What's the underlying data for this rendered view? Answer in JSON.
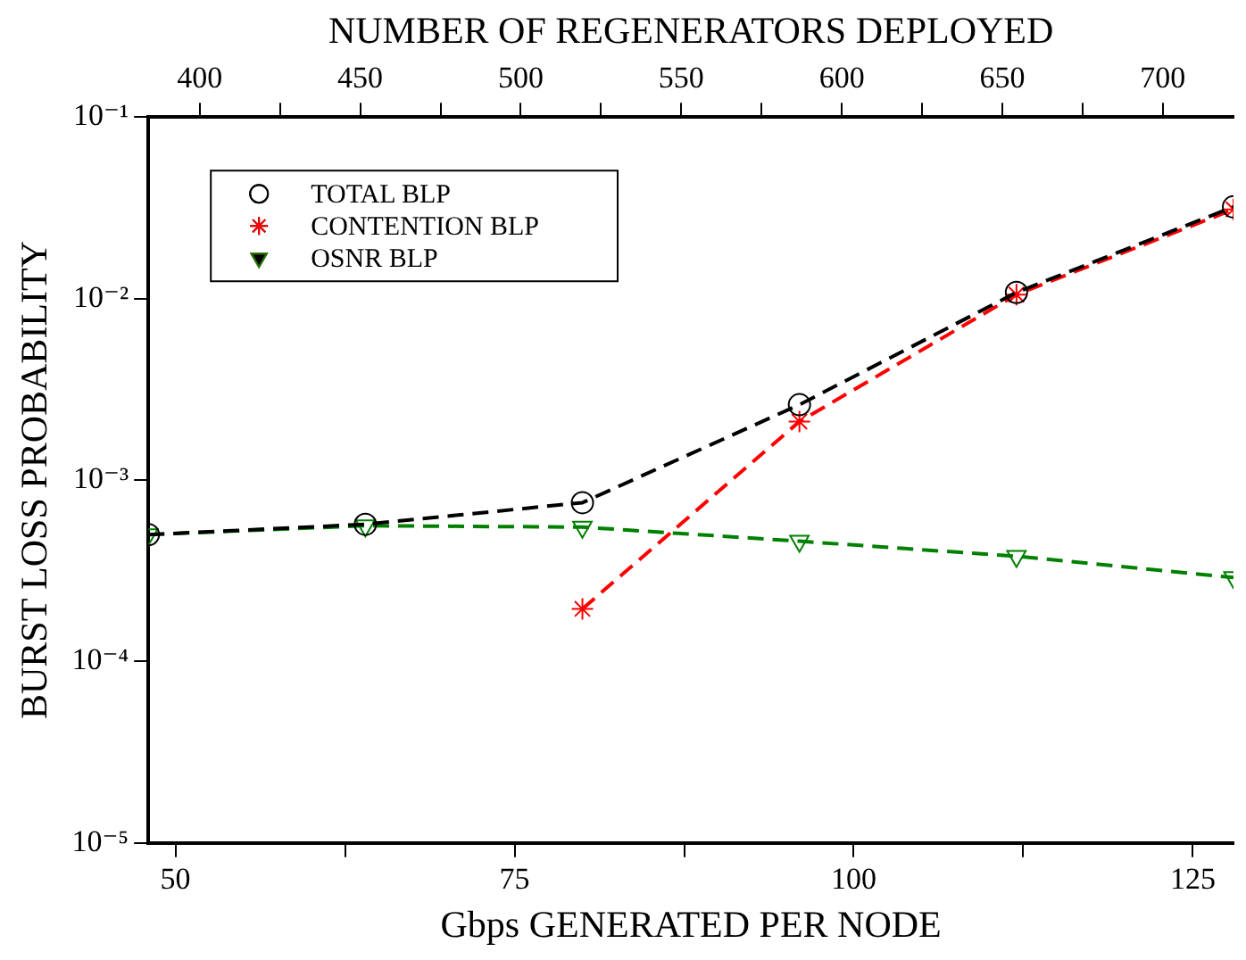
{
  "chart_data": {
    "type": "line",
    "xlabel": "Gbps GENERATED PER NODE",
    "ylabel": "BURST LOSS PROBABILITY",
    "x2label": "NUMBER OF REGENERATORS DEPLOYED",
    "x": [
      48,
      64,
      80,
      96,
      112,
      128
    ],
    "series": [
      {
        "name": "TOTAL BLP",
        "color": "#000000",
        "marker": "circle",
        "values": [
          0.0005,
          0.00057,
          0.00075,
          0.0026,
          0.0108,
          0.032
        ]
      },
      {
        "name": "CONTENTION BLP",
        "color": "#ff0000",
        "marker": "cross",
        "values": [
          null,
          null,
          0.000195,
          0.0021,
          0.0105,
          0.031
        ]
      },
      {
        "name": "OSNR BLP",
        "color": "#008000",
        "marker": "triangle",
        "values": [
          0.0005,
          0.00056,
          0.00055,
          0.00046,
          0.00038,
          0.00029
        ]
      }
    ],
    "line_style": "dashed",
    "log": "y",
    "xlim": [
      48,
      128
    ],
    "xticks": [
      50,
      {
        "value": 62.5,
        "label": null
      },
      75,
      {
        "value": 87.5,
        "label": null
      },
      100,
      {
        "value": 112.5,
        "label": null
      },
      125
    ],
    "x2lim": [
      384,
      722
    ],
    "x2ticks": [
      400,
      {
        "value": 425,
        "label": null
      },
      450,
      {
        "value": 475,
        "label": null
      },
      500,
      {
        "value": 525,
        "label": null
      },
      550,
      {
        "value": 575,
        "label": null
      },
      600,
      {
        "value": 625,
        "label": null
      },
      650,
      {
        "value": 675,
        "label": null
      },
      700
    ],
    "ylim": [
      1e-05,
      0.1
    ],
    "yticks": [
      {
        "value": 1e-05,
        "label": "10⁻⁵"
      },
      {
        "value": 0.0001,
        "label": "10⁻⁴"
      },
      {
        "value": 0.001,
        "label": "10⁻³"
      },
      {
        "value": 0.01,
        "label": "10⁻²"
      },
      {
        "value": 0.1,
        "label": "10⁻¹"
      }
    ],
    "grid": false,
    "legend": "top left"
  }
}
